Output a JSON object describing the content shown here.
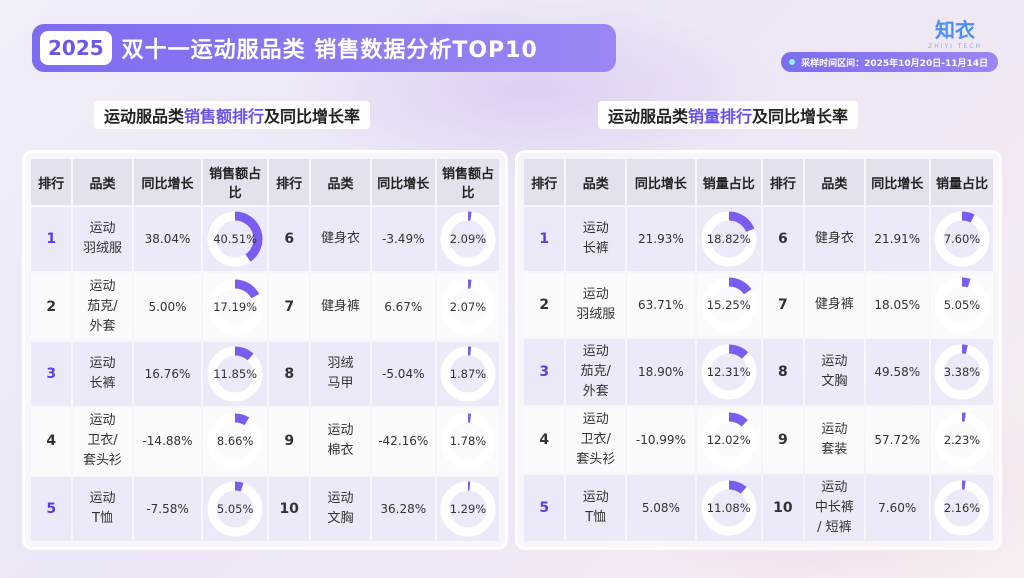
{
  "header": {
    "year": "2025",
    "title": "双十一运动服品类 销售数据分析TOP10",
    "logo_text": "知衣",
    "logo_sub": "ZHIYI TECH",
    "date_range": "采样时间区间：2025年10月20日-11月14日"
  },
  "left": {
    "title_pre": "运动服品类",
    "title_hl": "销售额排行",
    "title_post": "及同比增长率",
    "headers": [
      "排行",
      "品类",
      "同比增长",
      "销售额占比"
    ],
    "rows": [
      {
        "rank": "1",
        "cat": [
          "运动",
          "羽绒服"
        ],
        "yoy": "38.04%",
        "share": "40.51%",
        "share_val": 40.51
      },
      {
        "rank": "2",
        "cat": [
          "运动",
          "茄克/",
          "外套"
        ],
        "yoy": "5.00%",
        "share": "17.19%",
        "share_val": 17.19
      },
      {
        "rank": "3",
        "cat": [
          "运动",
          "长裤"
        ],
        "yoy": "16.76%",
        "share": "11.85%",
        "share_val": 11.85
      },
      {
        "rank": "4",
        "cat": [
          "运动",
          "卫衣/",
          "套头衫"
        ],
        "yoy": "-14.88%",
        "share": "8.66%",
        "share_val": 8.66
      },
      {
        "rank": "5",
        "cat": [
          "运动",
          "T恤"
        ],
        "yoy": "-7.58%",
        "share": "5.05%",
        "share_val": 5.05
      },
      {
        "rank": "6",
        "cat": [
          "健身衣"
        ],
        "yoy": "-3.49%",
        "share": "2.09%",
        "share_val": 2.09
      },
      {
        "rank": "7",
        "cat": [
          "健身裤"
        ],
        "yoy": "6.67%",
        "share": "2.07%",
        "share_val": 2.07
      },
      {
        "rank": "8",
        "cat": [
          "羽绒",
          "马甲"
        ],
        "yoy": "-5.04%",
        "share": "1.87%",
        "share_val": 1.87
      },
      {
        "rank": "9",
        "cat": [
          "运动",
          "棉衣"
        ],
        "yoy": "-42.16%",
        "share": "1.78%",
        "share_val": 1.78
      },
      {
        "rank": "10",
        "cat": [
          "运动",
          "文胸"
        ],
        "yoy": "36.28%",
        "share": "1.29%",
        "share_val": 1.29
      }
    ]
  },
  "right": {
    "title_pre": "运动服品类",
    "title_hl": "销量排行",
    "title_post": "及同比增长率",
    "headers": [
      "排行",
      "品类",
      "同比增长",
      "销量占比"
    ],
    "rows": [
      {
        "rank": "1",
        "cat": [
          "运动",
          "长裤"
        ],
        "yoy": "21.93%",
        "share": "18.82%",
        "share_val": 18.82
      },
      {
        "rank": "2",
        "cat": [
          "运动",
          "羽绒服"
        ],
        "yoy": "63.71%",
        "share": "15.25%",
        "share_val": 15.25
      },
      {
        "rank": "3",
        "cat": [
          "运动",
          "茄克/",
          "外套"
        ],
        "yoy": "18.90%",
        "share": "12.31%",
        "share_val": 12.31
      },
      {
        "rank": "4",
        "cat": [
          "运动",
          "卫衣/",
          "套头衫"
        ],
        "yoy": "-10.99%",
        "share": "12.02%",
        "share_val": 12.02
      },
      {
        "rank": "5",
        "cat": [
          "运动",
          "T恤"
        ],
        "yoy": "5.08%",
        "share": "11.08%",
        "share_val": 11.08
      },
      {
        "rank": "6",
        "cat": [
          "健身衣"
        ],
        "yoy": "21.91%",
        "share": "7.60%",
        "share_val": 7.6
      },
      {
        "rank": "7",
        "cat": [
          "健身裤"
        ],
        "yoy": "18.05%",
        "share": "5.05%",
        "share_val": 5.05
      },
      {
        "rank": "8",
        "cat": [
          "运动",
          "文胸"
        ],
        "yoy": "49.58%",
        "share": "3.38%",
        "share_val": 3.38
      },
      {
        "rank": "9",
        "cat": [
          "运动",
          "套装"
        ],
        "yoy": "57.72%",
        "share": "2.23%",
        "share_val": 2.23
      },
      {
        "rank": "10",
        "cat": [
          "运动",
          "中长裤",
          "/ 短裤"
        ],
        "yoy": "7.60%",
        "share": "2.16%",
        "share_val": 2.16
      }
    ]
  },
  "colors": {
    "accent": "#6a50e8",
    "donut_fill": "#7a5cf0",
    "donut_track": "#ffffff"
  }
}
